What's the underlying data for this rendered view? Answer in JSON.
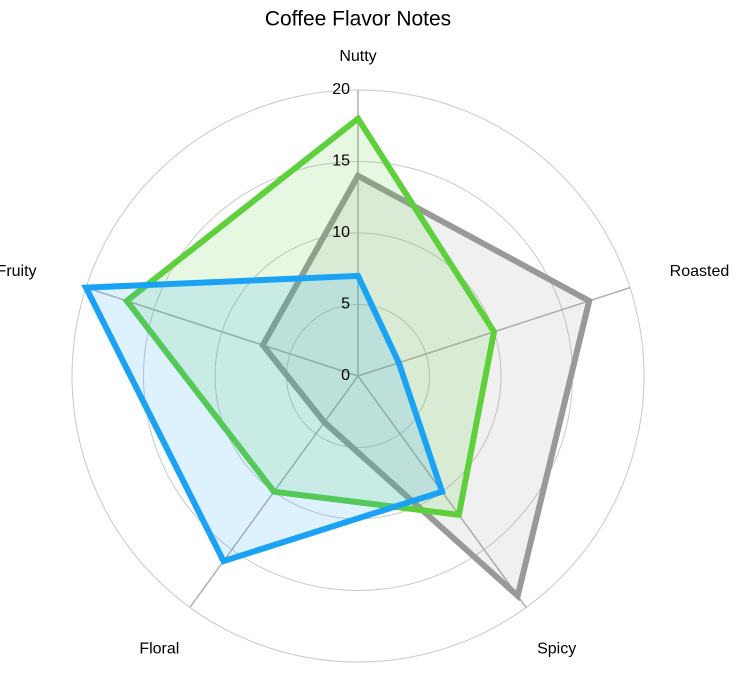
{
  "chart_data": {
    "type": "radar",
    "title": "Coffee Flavor Notes",
    "categories": [
      "Nutty",
      "Roasted",
      "Spicy",
      "Floral",
      "Fruity"
    ],
    "series": [
      {
        "color": "#999999",
        "values": [
          14,
          17,
          19,
          4,
          7
        ]
      },
      {
        "color": "#5ed03c",
        "values": [
          18,
          10,
          12,
          10,
          17
        ]
      },
      {
        "color": "#1aa3f5",
        "values": [
          7,
          3,
          10,
          16,
          20
        ]
      }
    ],
    "ylim": [
      0,
      20
    ],
    "yticks": [
      0,
      5,
      10,
      15,
      20
    ],
    "grid": true
  }
}
